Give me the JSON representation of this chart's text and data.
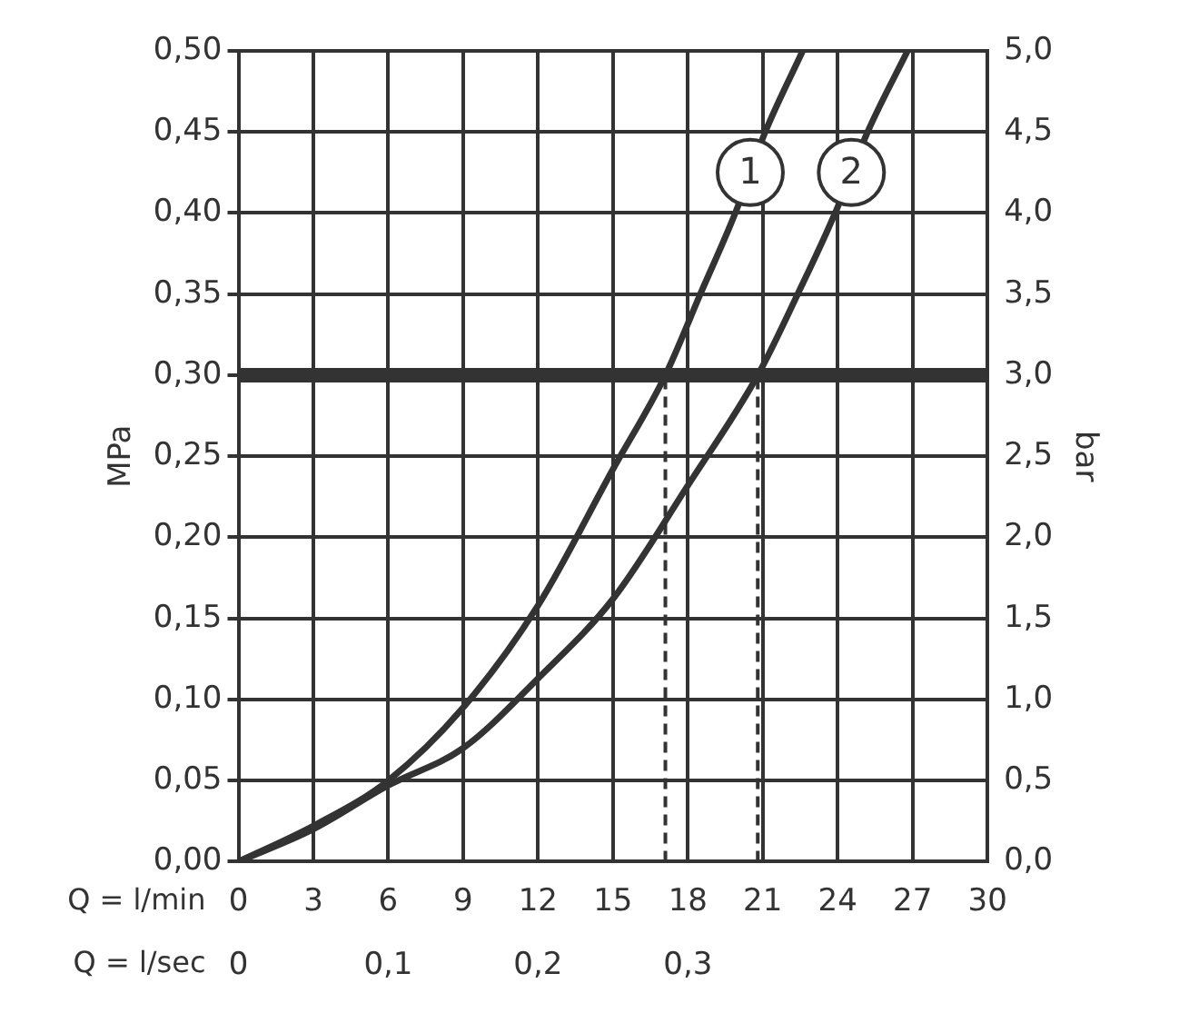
{
  "chart_data": {
    "type": "line",
    "xlabel": "Q = l/min",
    "x2label": "Q = l/sec",
    "ylabel": "MPa",
    "y2label": "bar",
    "series": [
      {
        "name": "1",
        "color": "#333333",
        "x": [
          0,
          3,
          6,
          9,
          12,
          15,
          17.1,
          18.5,
          19.9,
          21.1,
          22.6
        ],
        "values": [
          0,
          0.022,
          0.05,
          0.095,
          0.158,
          0.242,
          0.3,
          0.35,
          0.4,
          0.45,
          0.5
        ]
      },
      {
        "name": "2",
        "color": "#333333",
        "x": [
          0,
          3,
          6,
          9,
          12,
          15,
          18,
          20.8,
          22.4,
          23.9,
          25.2,
          26.8
        ],
        "values": [
          0,
          0.02,
          0.047,
          0.07,
          0.113,
          0.162,
          0.232,
          0.3,
          0.35,
          0.4,
          0.45,
          0.5
        ]
      }
    ],
    "xlim": [
      0,
      30
    ],
    "xticks": [
      0,
      3,
      6,
      9,
      12,
      15,
      18,
      21,
      24,
      27,
      30
    ],
    "x2lim": [
      0,
      0.5
    ],
    "x2ticks": [
      0,
      {
        "value": 0.1,
        "label": "0,1"
      },
      {
        "value": 0.2,
        "label": "0,2"
      },
      {
        "value": 0.3,
        "label": "0,3"
      }
    ],
    "ylim": [
      0,
      0.5
    ],
    "yticks": [
      {
        "value": 0,
        "label": "0,00"
      },
      {
        "value": 0.05,
        "label": "0,05"
      },
      {
        "value": 0.1,
        "label": "0,10"
      },
      {
        "value": 0.15,
        "label": "0,15"
      },
      {
        "value": 0.2,
        "label": "0,20"
      },
      {
        "value": 0.25,
        "label": "0,25"
      },
      {
        "value": 0.3,
        "label": "0,30"
      },
      {
        "value": 0.35,
        "label": "0,35"
      },
      {
        "value": 0.4,
        "label": "0,40"
      },
      {
        "value": 0.45,
        "label": "0,45"
      },
      {
        "value": 0.5,
        "label": "0,50"
      }
    ],
    "y2lim": [
      0,
      5
    ],
    "y2ticks": [
      {
        "value": 0,
        "label": "0,0"
      },
      {
        "value": 0.5,
        "label": "0,5"
      },
      {
        "value": 1,
        "label": "1,0"
      },
      {
        "value": 1.5,
        "label": "1,5"
      },
      {
        "value": 2,
        "label": "2,0"
      },
      {
        "value": 2.5,
        "label": "2,5"
      },
      {
        "value": 3,
        "label": "3,0"
      },
      {
        "value": 3.5,
        "label": "3,5"
      },
      {
        "value": 4,
        "label": "4,0"
      },
      {
        "value": 4.5,
        "label": "4,5"
      },
      {
        "value": 5,
        "label": "5,0"
      }
    ],
    "ref_lines": [
      {
        "axis": "y",
        "value": 0.3,
        "color": "#333333",
        "line_style": "solid"
      },
      {
        "axis": "x",
        "value": 17.1,
        "color": "#333333",
        "line_style": "dashed"
      },
      {
        "axis": "x",
        "value": 20.8,
        "color": "#333333",
        "line_style": "dashed"
      }
    ],
    "grid": true,
    "legend": "top right",
    "marker": "none",
    "line_style": "solid"
  }
}
